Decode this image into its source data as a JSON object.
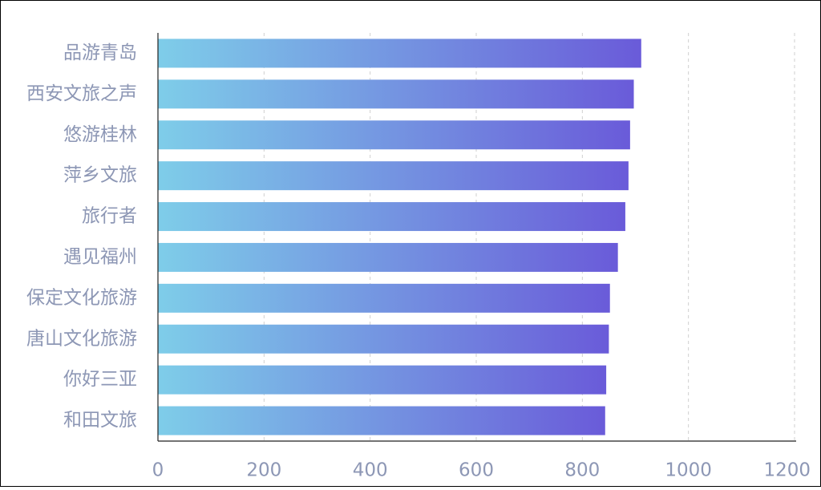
{
  "chart_data": {
    "type": "bar",
    "orientation": "horizontal",
    "categories": [
      "品游青岛",
      "西安文旅之声",
      "悠游桂林",
      "萍乡文旅",
      "旅行者",
      "遇见福州",
      "保定文化旅游",
      "唐山文化旅游",
      "你好三亚",
      "和田文旅"
    ],
    "values": [
      911,
      897,
      890,
      887,
      881,
      867,
      852,
      850,
      845,
      843
    ],
    "title": "",
    "xlabel": "",
    "ylabel": "",
    "xlim": [
      0,
      1200
    ],
    "xticks": [
      0,
      200,
      400,
      600,
      800,
      1000,
      1200
    ],
    "grid": "vertical-dashed",
    "bar_gradient": [
      "#7ecde9",
      "#6a5bd9"
    ],
    "label_color": "#8d97b5",
    "legend": "none"
  }
}
